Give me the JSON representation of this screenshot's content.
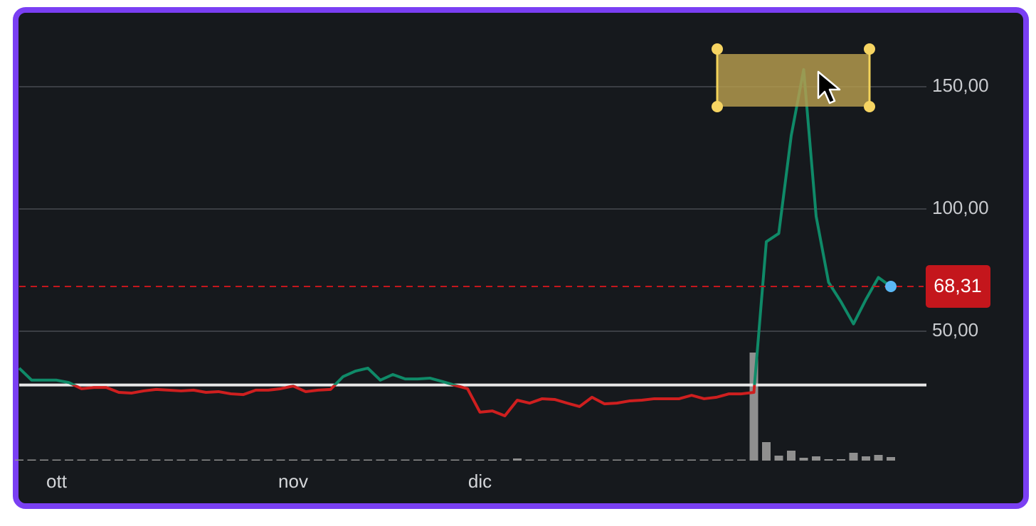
{
  "chart_data": {
    "type": "line",
    "categories": [
      null,
      null,
      null,
      "ott",
      null,
      null,
      null,
      null,
      null,
      null,
      null,
      null,
      null,
      null,
      null,
      null,
      null,
      null,
      null,
      null,
      null,
      null,
      "nov",
      null,
      null,
      null,
      null,
      null,
      null,
      null,
      null,
      null,
      null,
      null,
      null,
      null,
      null,
      "dic",
      null,
      null,
      null,
      null,
      null,
      null,
      null,
      null,
      null,
      null,
      null,
      null,
      null,
      null,
      null,
      null,
      null,
      null,
      null,
      null,
      null,
      null,
      null,
      null,
      null,
      null,
      null,
      null,
      null,
      null,
      null,
      null,
      null
    ],
    "values": [
      34.9,
      30,
      30,
      30,
      29,
      26.5,
      27,
      27,
      25,
      24.7,
      25.6,
      26.2,
      25.9,
      25.6,
      25.9,
      25,
      25.3,
      24.4,
      24.1,
      25.9,
      25.9,
      26.5,
      27.6,
      25.3,
      25.9,
      26.2,
      31.4,
      33.7,
      34.9,
      30,
      32.3,
      30.5,
      30.5,
      30.8,
      29.4,
      27.9,
      26.5,
      16.9,
      17.4,
      15.4,
      21.8,
      20.6,
      22.4,
      22.1,
      20.6,
      19.2,
      23,
      20.3,
      20.6,
      21.5,
      21.8,
      22.4,
      22.4,
      22.4,
      23.8,
      22.4,
      23,
      24.4,
      24.4,
      25,
      86.6,
      90,
      130,
      157,
      97,
      70,
      62,
      53,
      63,
      72,
      68.31
    ],
    "color_above": "#0f8a68",
    "color_below": "#cf1f1f",
    "baseline": 28,
    "baseline_color": "#e8e8e8",
    "volume": [
      1,
      0,
      0,
      0,
      0,
      0,
      0,
      0,
      0,
      0,
      0,
      0,
      0,
      0,
      0,
      0,
      0,
      0,
      0,
      0,
      0,
      0,
      0,
      0,
      0,
      0,
      0,
      0,
      0,
      0,
      0,
      0,
      0,
      0,
      0,
      0,
      0,
      1,
      1,
      0,
      3,
      0,
      0,
      0,
      0,
      0,
      1,
      0,
      0,
      0,
      0,
      0,
      0,
      0,
      0,
      0,
      0,
      0,
      1,
      152,
      26,
      7,
      14,
      4,
      6,
      2,
      2,
      11,
      6,
      8,
      5
    ],
    "volume_color": "#8f8f8f",
    "volume_ylim": [
      0,
      160
    ],
    "ylim": [
      0,
      175
    ],
    "yticks": [
      {
        "value": 50,
        "label": "50,00"
      },
      {
        "value": 100,
        "label": "100,00"
      },
      {
        "value": 150,
        "label": "150,00"
      }
    ],
    "grid": true,
    "last_value_label": "68,31",
    "last_value_color": "#c4161c",
    "marker_color": "#5ab8f5"
  }
}
